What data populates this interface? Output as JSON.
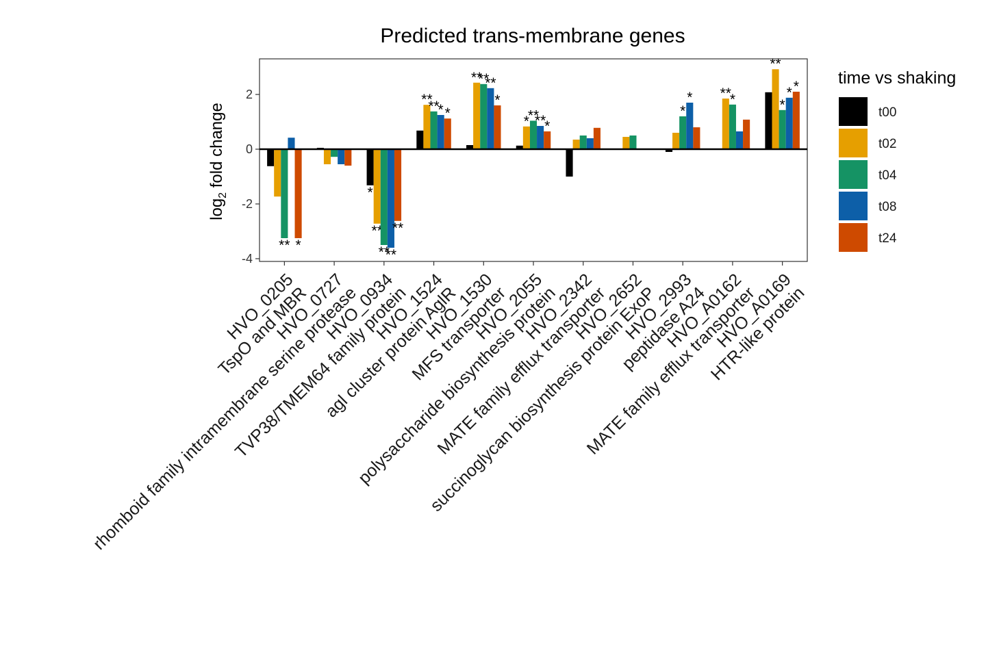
{
  "chart_data": {
    "type": "bar",
    "title": "Predicted trans-membrane genes",
    "xlabel": "",
    "ylabel_main": "log",
    "ylabel_sub": "2",
    "ylabel_rest": " fold change",
    "ylim": [
      -4.1,
      3.3
    ],
    "yticks": [
      -4,
      -2,
      0,
      2
    ],
    "ytick_labels": [
      "-4",
      "-2",
      "0",
      "2"
    ],
    "grid": false,
    "legend_position": "right",
    "legend_title": "time vs shaking",
    "categories": [
      {
        "id": "HVO_0205",
        "desc": "TspO and MBR"
      },
      {
        "id": "HVO_0727",
        "desc": "rhomboid family intramembrane serine protease"
      },
      {
        "id": "HVO_0934",
        "desc": "TVP38/TMEM64 family protein"
      },
      {
        "id": "HVO_1524",
        "desc": "agl cluster protein AglR"
      },
      {
        "id": "HVO_1530",
        "desc": "MFS transporter"
      },
      {
        "id": "HVO_2055",
        "desc": "polysaccharide biosynthesis protein"
      },
      {
        "id": "HVO_2342",
        "desc": "MATE family efflux transporter"
      },
      {
        "id": "HVO_2652",
        "desc": "succinoglycan biosynthesis protein ExoP"
      },
      {
        "id": "HVO_2993",
        "desc": "peptidase A24"
      },
      {
        "id": "HVO_A0162",
        "desc": "MATE family efflux transporter"
      },
      {
        "id": "HVO_A0169",
        "desc": "HTR-like protein"
      }
    ],
    "series": [
      {
        "name": "t00",
        "color": "#000000",
        "values": [
          -0.62,
          0.05,
          -1.32,
          0.68,
          0.15,
          0.13,
          -1.0,
          null,
          -0.1,
          null,
          2.08
        ],
        "sig": [
          "",
          "",
          "*",
          "",
          "",
          "",
          "",
          "",
          "",
          "",
          ""
        ]
      },
      {
        "name": "t02",
        "color": "#E69F00",
        "values": [
          -1.73,
          -0.55,
          -2.72,
          1.62,
          2.43,
          0.83,
          0.35,
          0.45,
          0.6,
          1.85,
          2.92
        ],
        "sig": [
          "",
          "",
          "**",
          "**",
          "**",
          "*",
          "",
          "",
          "",
          "**",
          "**"
        ]
      },
      {
        "name": "t04",
        "color": "#159364",
        "values": [
          -3.25,
          -0.28,
          -3.5,
          1.38,
          2.38,
          1.04,
          0.5,
          0.5,
          1.2,
          1.63,
          1.43
        ],
        "sig": [
          "**",
          "",
          "**",
          "**",
          "**",
          "**",
          "",
          "",
          "*",
          "*",
          "*"
        ]
      },
      {
        "name": "t08",
        "color": "#0D5FA8",
        "values": [
          0.42,
          -0.55,
          -3.6,
          1.25,
          2.23,
          0.85,
          0.4,
          null,
          1.7,
          0.65,
          1.88
        ],
        "sig": [
          "",
          "",
          "**",
          "*",
          "**",
          "**",
          "",
          "",
          "*",
          "",
          "*"
        ]
      },
      {
        "name": "t24",
        "color": "#CE4A00",
        "values": [
          -3.25,
          -0.6,
          -2.62,
          1.12,
          1.6,
          0.65,
          0.78,
          null,
          0.8,
          1.08,
          2.1
        ],
        "sig": [
          "*",
          "",
          "**",
          "*",
          "*",
          "*",
          "",
          "",
          "",
          "",
          "*"
        ]
      }
    ]
  }
}
